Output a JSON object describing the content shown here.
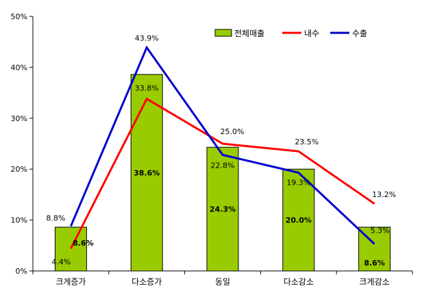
{
  "chart_data": {
    "type": "bar",
    "categories": [
      "크게증가",
      "다소증가",
      "동일",
      "다소감소",
      "크게감소"
    ],
    "ylim": [
      0,
      50
    ],
    "yticks": [
      0,
      10,
      20,
      30,
      40,
      50
    ],
    "ytick_labels": [
      "0%",
      "10%",
      "20%",
      "30%",
      "40%",
      "50%"
    ],
    "grid": false,
    "legend_position": "top-right",
    "series": [
      {
        "name": "전체매출",
        "type": "bar",
        "color": "#99CC00",
        "values": [
          8.6,
          38.6,
          24.3,
          20.0,
          8.6
        ],
        "labels": [
          "8.6%",
          "38.6%",
          "24.3%",
          "20.0%",
          "8.6%"
        ]
      },
      {
        "name": "내수",
        "type": "line",
        "color": "#FF0000",
        "values": [
          4.4,
          33.8,
          25.0,
          23.5,
          13.2
        ],
        "labels": [
          "4.4%",
          "33.8%",
          "25.0%",
          "23.5%",
          "13.2%"
        ]
      },
      {
        "name": "수출",
        "type": "line",
        "color": "#0000CC",
        "values": [
          8.8,
          43.9,
          22.8,
          19.3,
          5.3
        ],
        "labels": [
          "8.8%",
          "43.9%",
          "22.8%",
          "19.3%",
          "5.3%"
        ]
      }
    ]
  }
}
